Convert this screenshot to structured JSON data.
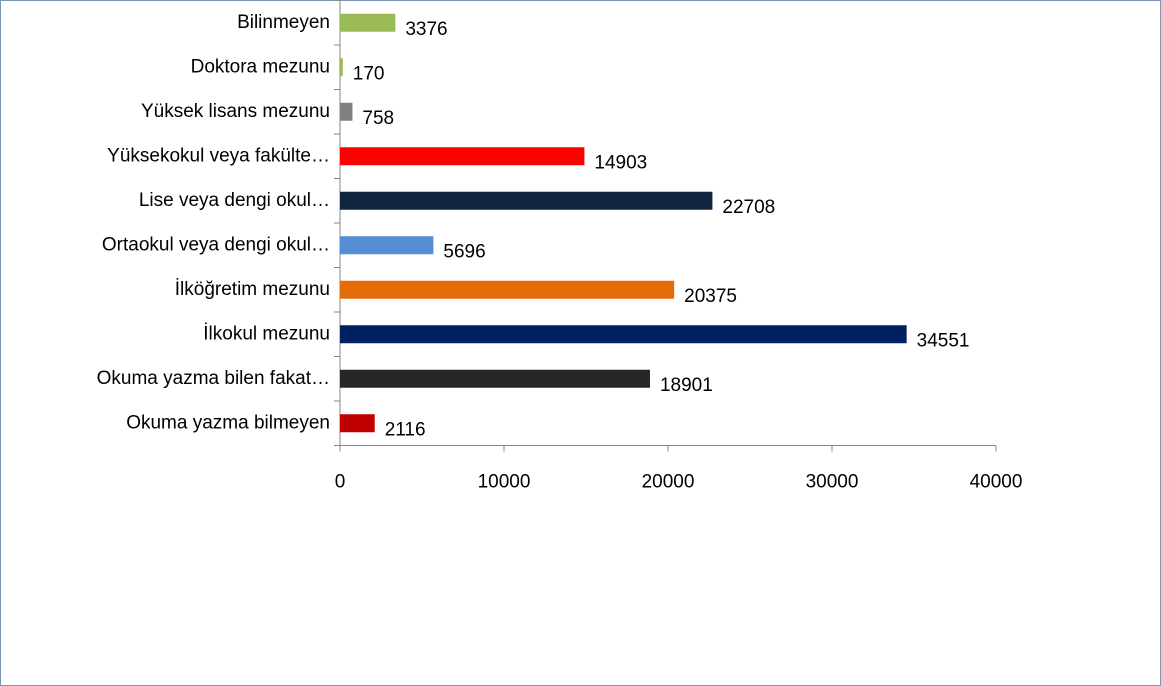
{
  "chart_data": {
    "type": "bar",
    "orientation": "horizontal",
    "categories": [
      "Okuma yazma bilmeyen",
      "Okuma yazma bilen fakat…",
      "İlkokul mezunu",
      "İlköğretim mezunu",
      "Ortaokul veya dengi okul…",
      "Lise veya dengi okul…",
      "Yüksekokul veya fakülte…",
      "Yüksek lisans mezunu",
      "Doktora mezunu",
      "Bilinmeyen"
    ],
    "values": [
      2116,
      18901,
      34551,
      20375,
      5696,
      22708,
      14903,
      758,
      170,
      3376
    ],
    "colors": [
      "#c00000",
      "#262626",
      "#002060",
      "#e36c09",
      "#558ed5",
      "#0f243e",
      "#ff0000",
      "#808080",
      "#9bbb59",
      "#9bbb59"
    ],
    "xlim": [
      0,
      40000
    ],
    "xticks": [
      0,
      10000,
      20000,
      30000,
      40000
    ],
    "grid": false
  }
}
